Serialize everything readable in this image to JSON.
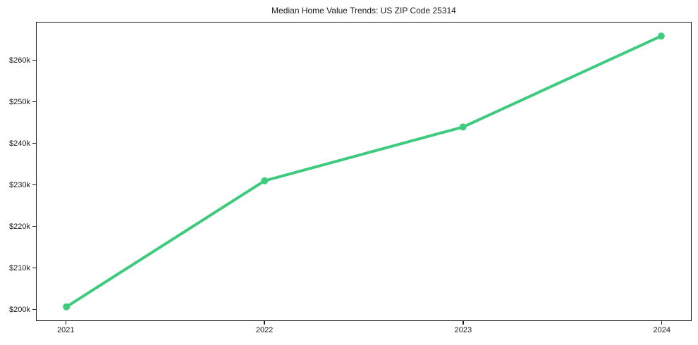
{
  "chart_data": {
    "type": "line",
    "title": "Median Home Value Trends: US ZIP Code 25314",
    "series_name": "Median Home Value",
    "x": [
      2021,
      2022,
      2023,
      2024
    ],
    "values": [
      200500,
      231000,
      244000,
      266000
    ],
    "xticks": [
      "2021",
      "2022",
      "2023",
      "2024"
    ],
    "xtick_values": [
      2021,
      2022,
      2023,
      2024
    ],
    "yticks": [
      "$200k",
      "$210k",
      "$220k",
      "$230k",
      "$240k",
      "$250k",
      "$260k"
    ],
    "ytick_values": [
      200000,
      210000,
      220000,
      230000,
      240000,
      250000,
      260000
    ],
    "xlim": [
      2020.85,
      2024.15
    ],
    "ylim": [
      197225,
      269275
    ],
    "xlabel": "",
    "ylabel": "",
    "grid": false,
    "legend_position": "none",
    "line_color": "#3ecb7d",
    "marker": "circle",
    "marker_radius": 5,
    "line_width": 4,
    "axis_color": "#1a1a1a",
    "background_color": "#ffffff"
  }
}
